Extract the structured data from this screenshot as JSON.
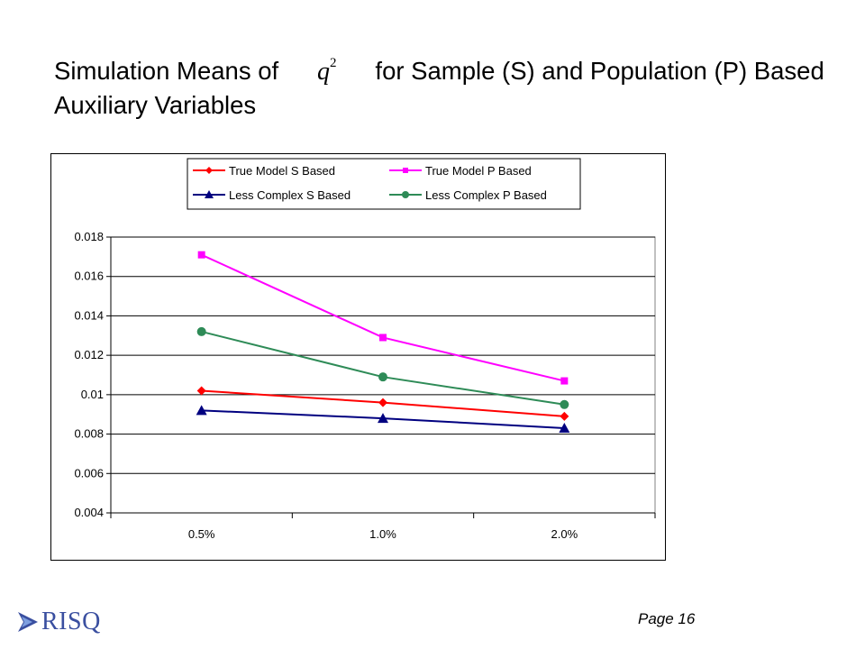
{
  "slide": {
    "title_part1": "Simulation Means of ",
    "title_symbol": "q",
    "title_symbol_exp": "2",
    "title_part2": " for Sample (S)  and Population (P) Based Auxiliary Variables",
    "page_number": "Page 16",
    "logo_text": "RISQ"
  },
  "chart_data": {
    "type": "line",
    "categories": [
      "0.5%",
      "1.0%",
      "2.0%"
    ],
    "ylim": [
      0.004,
      0.018
    ],
    "yticks": [
      "0.004",
      "0.006",
      "0.008",
      "0.01",
      "0.012",
      "0.014",
      "0.016",
      "0.018"
    ],
    "grid": true,
    "legend_position": "top",
    "series": [
      {
        "name": "True Model S Based",
        "values": [
          0.0102,
          0.0096,
          0.0089
        ],
        "color": "#ff0000",
        "marker": "diamond"
      },
      {
        "name": "True Model P Based",
        "values": [
          0.0171,
          0.0129,
          0.0107
        ],
        "color": "#ff00ff",
        "marker": "square"
      },
      {
        "name": "Less Complex S Based",
        "values": [
          0.0092,
          0.0088,
          0.0083
        ],
        "color": "#000080",
        "marker": "triangle"
      },
      {
        "name": "Less Complex P Based",
        "values": [
          0.0132,
          0.0109,
          0.0095
        ],
        "color": "#2e8b57",
        "marker": "circle"
      }
    ]
  }
}
